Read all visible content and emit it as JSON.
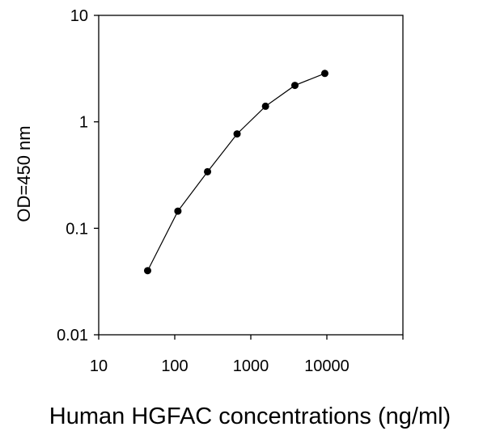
{
  "chart_data": {
    "type": "line",
    "title": "",
    "xlabel": "Human HGFAC concentrations (ng/ml)",
    "ylabel": "OD=450 nm",
    "x_scale": "log",
    "y_scale": "log",
    "xlim": [
      10,
      100000
    ],
    "ylim": [
      0.01,
      10
    ],
    "x_ticks": [
      "10",
      "100",
      "1000",
      "10000"
    ],
    "y_ticks": [
      "10",
      "1",
      "0.1",
      "0.01"
    ],
    "grid": false,
    "legend": "none",
    "series": [
      {
        "x": [
          44,
          110,
          270,
          660,
          1560,
          3800,
          9400
        ],
        "y": [
          0.04,
          0.145,
          0.34,
          0.77,
          1.4,
          2.2,
          2.85
        ]
      }
    ]
  }
}
